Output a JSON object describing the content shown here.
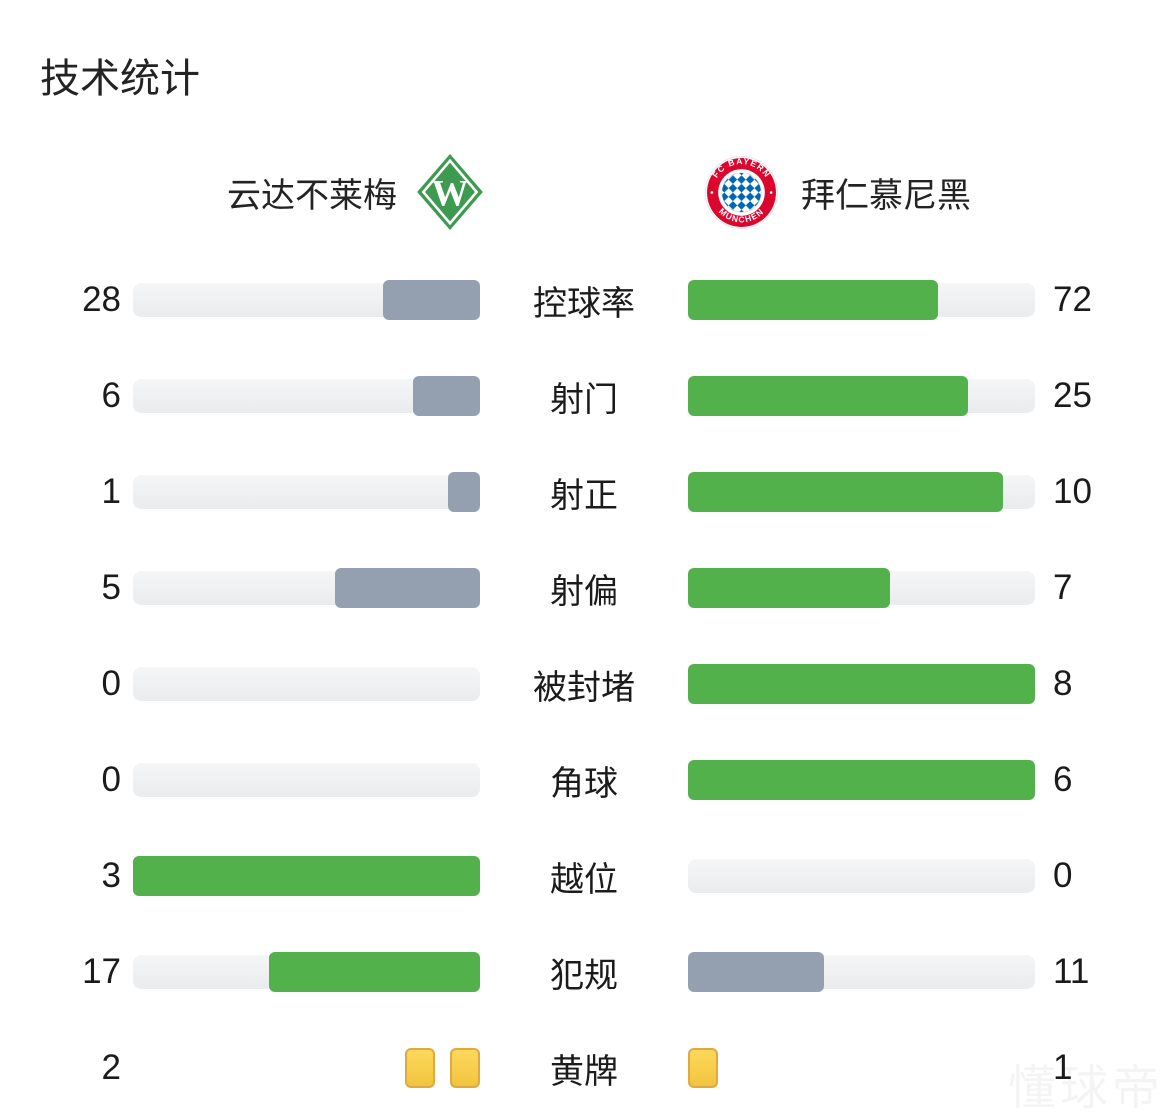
{
  "title": "技术统计",
  "teams": {
    "home": {
      "name": "云达不莱梅",
      "crest": "werder-bremen-diamond-w"
    },
    "away": {
      "name": "拜仁慕尼黑",
      "crest": "fc-bayern-roundel",
      "crest_text_top": "FC BAYERN",
      "crest_text_bottom": "MÜNCHEN"
    }
  },
  "colors": {
    "win": "#52B14A",
    "lose": "#94A0AF",
    "card_fill": "#F9CF4B",
    "card_border": "#DFA93E",
    "home_crest_green": "#3D9A50",
    "away_crest_red": "#DC052D",
    "away_crest_blue": "#0066B2"
  },
  "cards_category": "黄牌",
  "watermark": "懂球帝",
  "chart_data": {
    "type": "bar",
    "title": "技术统计",
    "categories": [
      "控球率",
      "射门",
      "射正",
      "射偏",
      "被封堵",
      "角球",
      "越位",
      "犯规",
      "黄牌"
    ],
    "series": [
      {
        "name": "云达不莱梅",
        "values": [
          28,
          6,
          1,
          5,
          0,
          0,
          3,
          17,
          2
        ]
      },
      {
        "name": "拜仁慕尼黑",
        "values": [
          72,
          25,
          10,
          7,
          8,
          6,
          0,
          11,
          1
        ]
      }
    ],
    "layout": "paired horizontal bars; higher value is green, lower value is blue-gray; bar length = value/(home+away); yellow-card row rendered as card icons"
  }
}
